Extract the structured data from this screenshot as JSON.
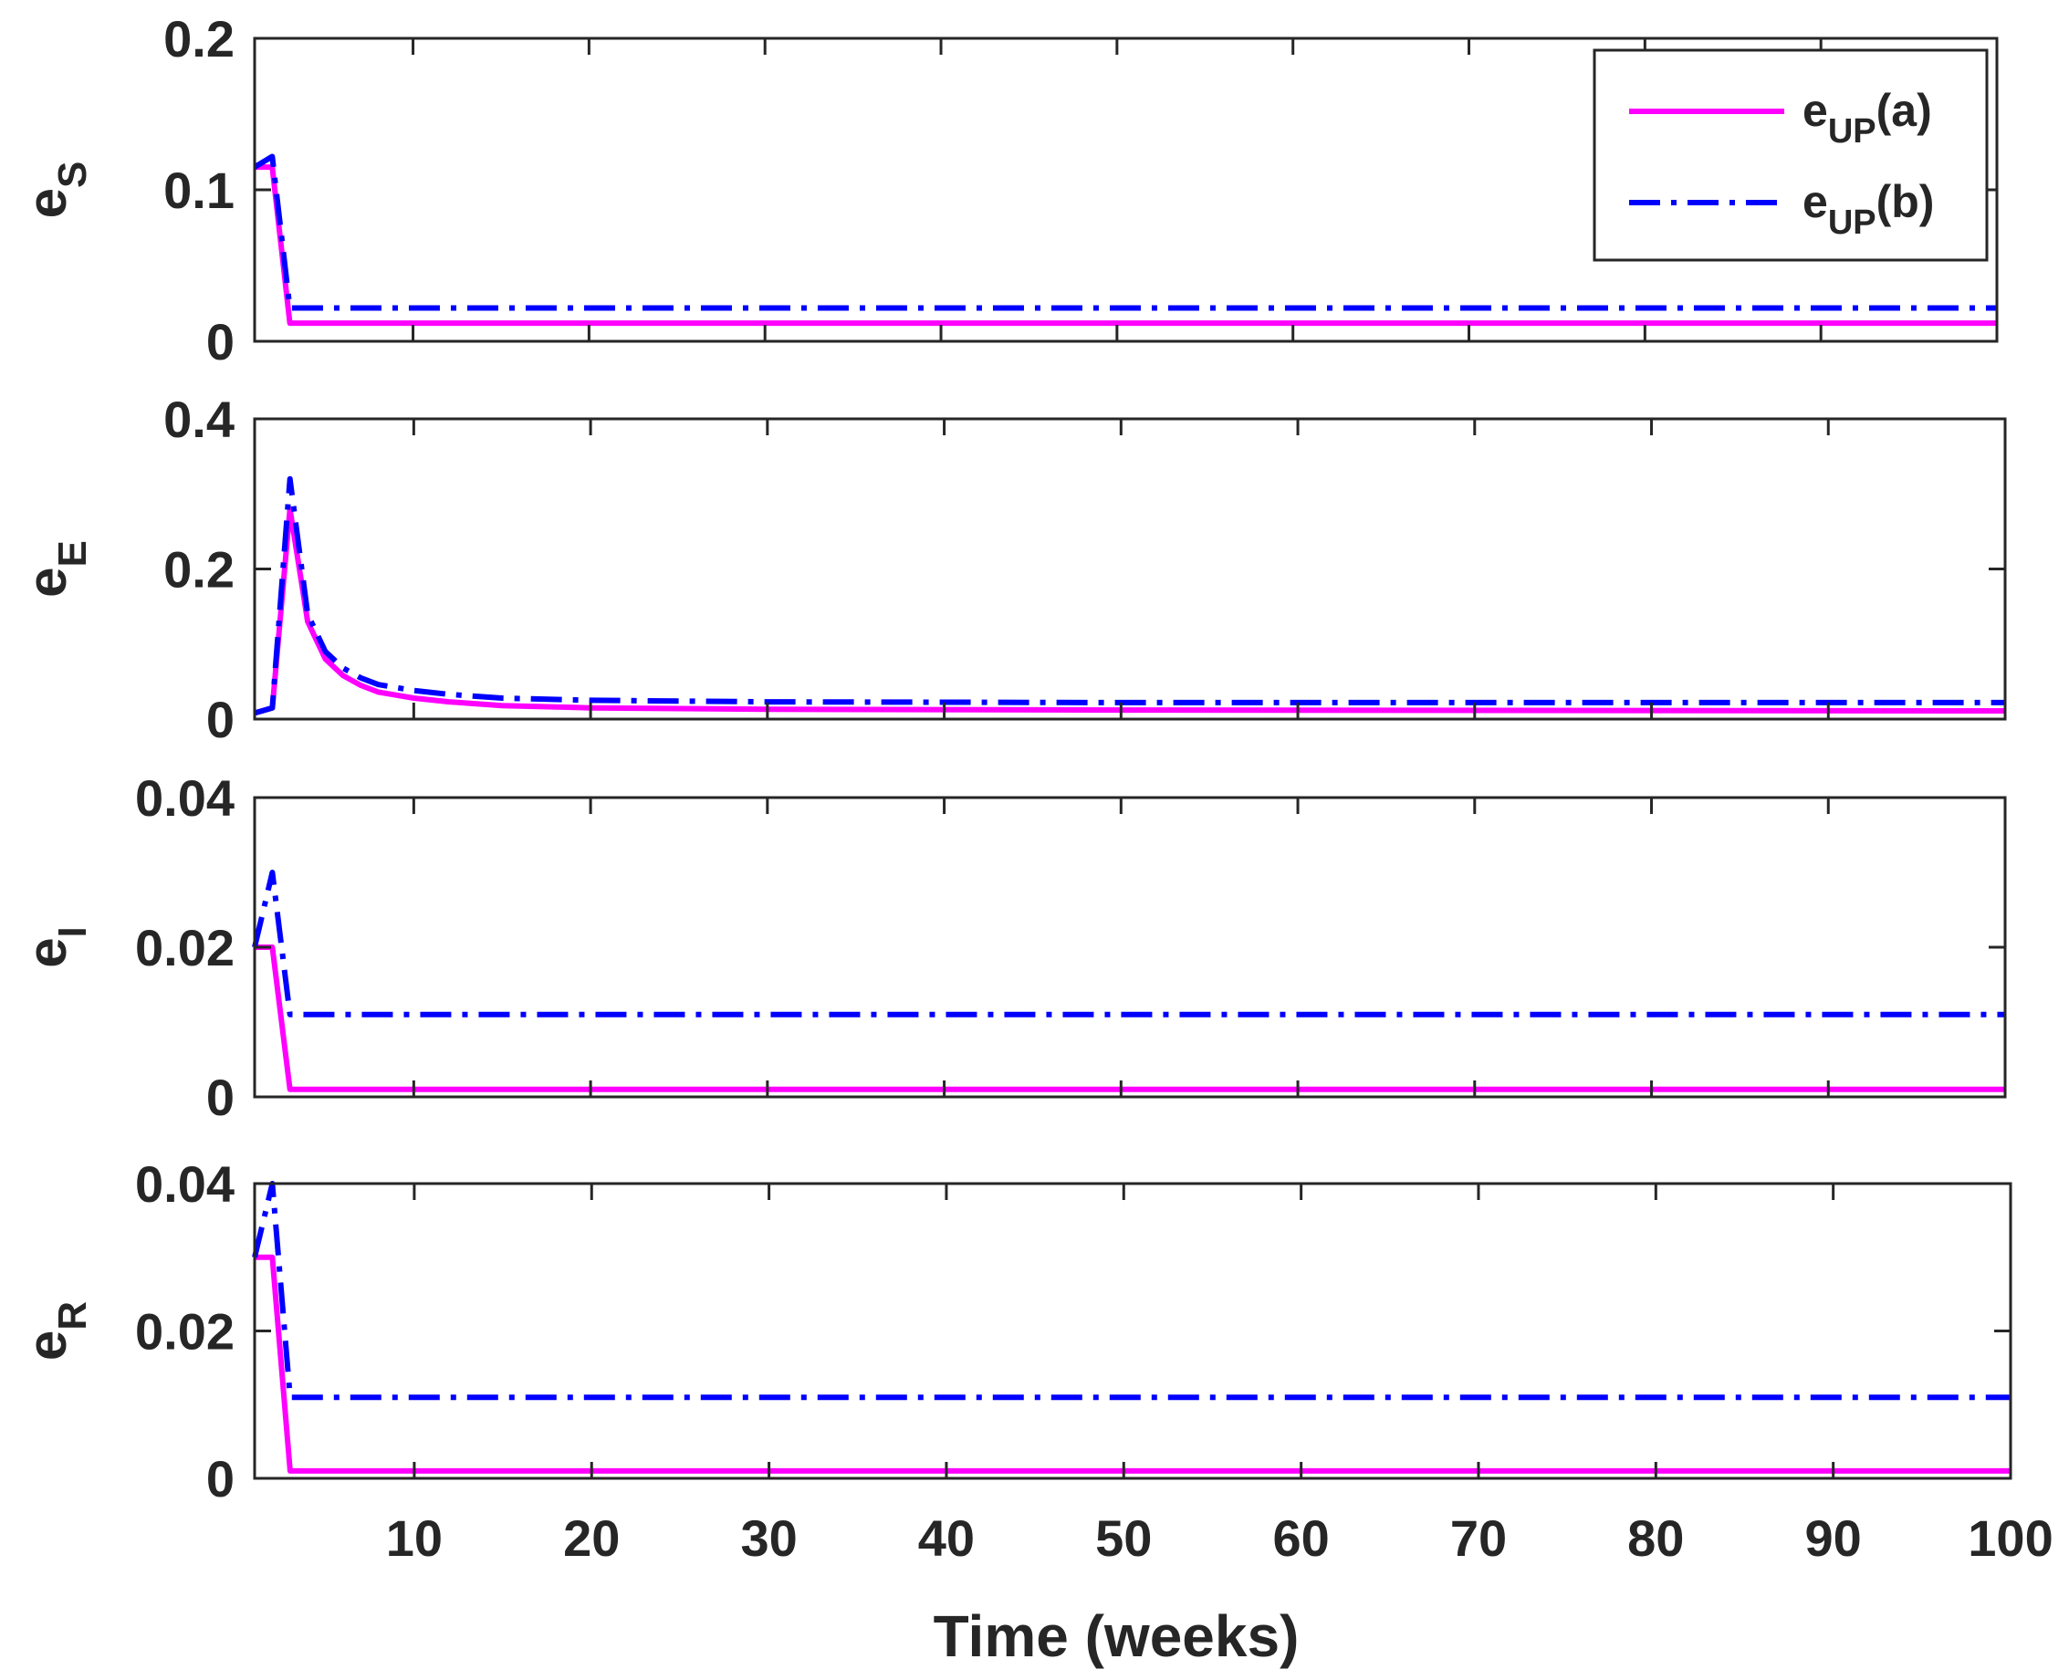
{
  "chart_data": {
    "type": "line",
    "xlabel": "Time (weeks)",
    "xlim": [
      1,
      100
    ],
    "xticks": [
      10,
      20,
      30,
      40,
      50,
      60,
      70,
      80,
      90,
      100
    ],
    "legend": {
      "placement": "top-right of first panel",
      "entries": [
        {
          "base": "e",
          "sub": "UP",
          "suffix": "(a)",
          "color": "#ff00ff",
          "style": "solid"
        },
        {
          "base": "e",
          "sub": "UP",
          "suffix": "(b)",
          "color": "#0000ff",
          "style": "dash-dot"
        }
      ]
    },
    "panels": [
      {
        "ylabel": {
          "base": "e",
          "sub": "S"
        },
        "ylim": [
          0,
          0.2
        ],
        "yticks": [
          0,
          0.1,
          0.2
        ],
        "ytick_labels": [
          "0",
          "0.1",
          "0.2"
        ],
        "series": [
          {
            "name": "eUP(a)",
            "points": [
              [
                1,
                0.115
              ],
              [
                2,
                0.115
              ],
              [
                3,
                0.012
              ],
              [
                100,
                0.012
              ]
            ]
          },
          {
            "name": "eUP(b)",
            "points": [
              [
                1,
                0.115
              ],
              [
                2,
                0.122
              ],
              [
                3,
                0.022
              ],
              [
                100,
                0.022
              ]
            ]
          }
        ]
      },
      {
        "ylabel": {
          "base": "e",
          "sub": "E"
        },
        "ylim": [
          0,
          0.4
        ],
        "yticks": [
          0,
          0.2,
          0.4
        ],
        "ytick_labels": [
          "0",
          "0.2",
          "0.4"
        ],
        "series": [
          {
            "name": "eUP(a)",
            "points": [
              [
                1,
                0.008
              ],
              [
                2,
                0.015
              ],
              [
                3,
                0.28
              ],
              [
                4,
                0.13
              ],
              [
                5,
                0.08
              ],
              [
                6,
                0.058
              ],
              [
                7,
                0.045
              ],
              [
                8,
                0.036
              ],
              [
                10,
                0.028
              ],
              [
                12,
                0.023
              ],
              [
                15,
                0.018
              ],
              [
                20,
                0.015
              ],
              [
                30,
                0.013
              ],
              [
                50,
                0.012
              ],
              [
                100,
                0.011
              ]
            ]
          },
          {
            "name": "eUP(b)",
            "points": [
              [
                1,
                0.008
              ],
              [
                2,
                0.015
              ],
              [
                3,
                0.32
              ],
              [
                4,
                0.14
              ],
              [
                5,
                0.09
              ],
              [
                6,
                0.068
              ],
              [
                7,
                0.055
              ],
              [
                8,
                0.046
              ],
              [
                10,
                0.038
              ],
              [
                12,
                0.033
              ],
              [
                15,
                0.028
              ],
              [
                20,
                0.025
              ],
              [
                30,
                0.023
              ],
              [
                50,
                0.022
              ],
              [
                100,
                0.022
              ]
            ]
          }
        ]
      },
      {
        "ylabel": {
          "base": "e",
          "sub": "I"
        },
        "ylim": [
          0,
          0.04
        ],
        "yticks": [
          0,
          0.02,
          0.04
        ],
        "ytick_labels": [
          "0",
          "0.02",
          "0.04"
        ],
        "series": [
          {
            "name": "eUP(a)",
            "points": [
              [
                1,
                0.02
              ],
              [
                2,
                0.02
              ],
              [
                3,
                0.001
              ],
              [
                100,
                0.001
              ]
            ]
          },
          {
            "name": "eUP(b)",
            "points": [
              [
                1,
                0.02
              ],
              [
                2,
                0.03
              ],
              [
                3,
                0.011
              ],
              [
                100,
                0.011
              ]
            ]
          }
        ]
      },
      {
        "ylabel": {
          "base": "e",
          "sub": "R"
        },
        "ylim": [
          0,
          0.04
        ],
        "yticks": [
          0,
          0.02,
          0.04
        ],
        "ytick_labels": [
          "0",
          "0.02",
          "0.04"
        ],
        "series": [
          {
            "name": "eUP(a)",
            "points": [
              [
                1,
                0.03
              ],
              [
                2,
                0.03
              ],
              [
                3,
                0.001
              ],
              [
                100,
                0.001
              ]
            ]
          },
          {
            "name": "eUP(b)",
            "points": [
              [
                1,
                0.03
              ],
              [
                2,
                0.04
              ],
              [
                3,
                0.011
              ],
              [
                100,
                0.011
              ]
            ]
          }
        ]
      }
    ]
  }
}
